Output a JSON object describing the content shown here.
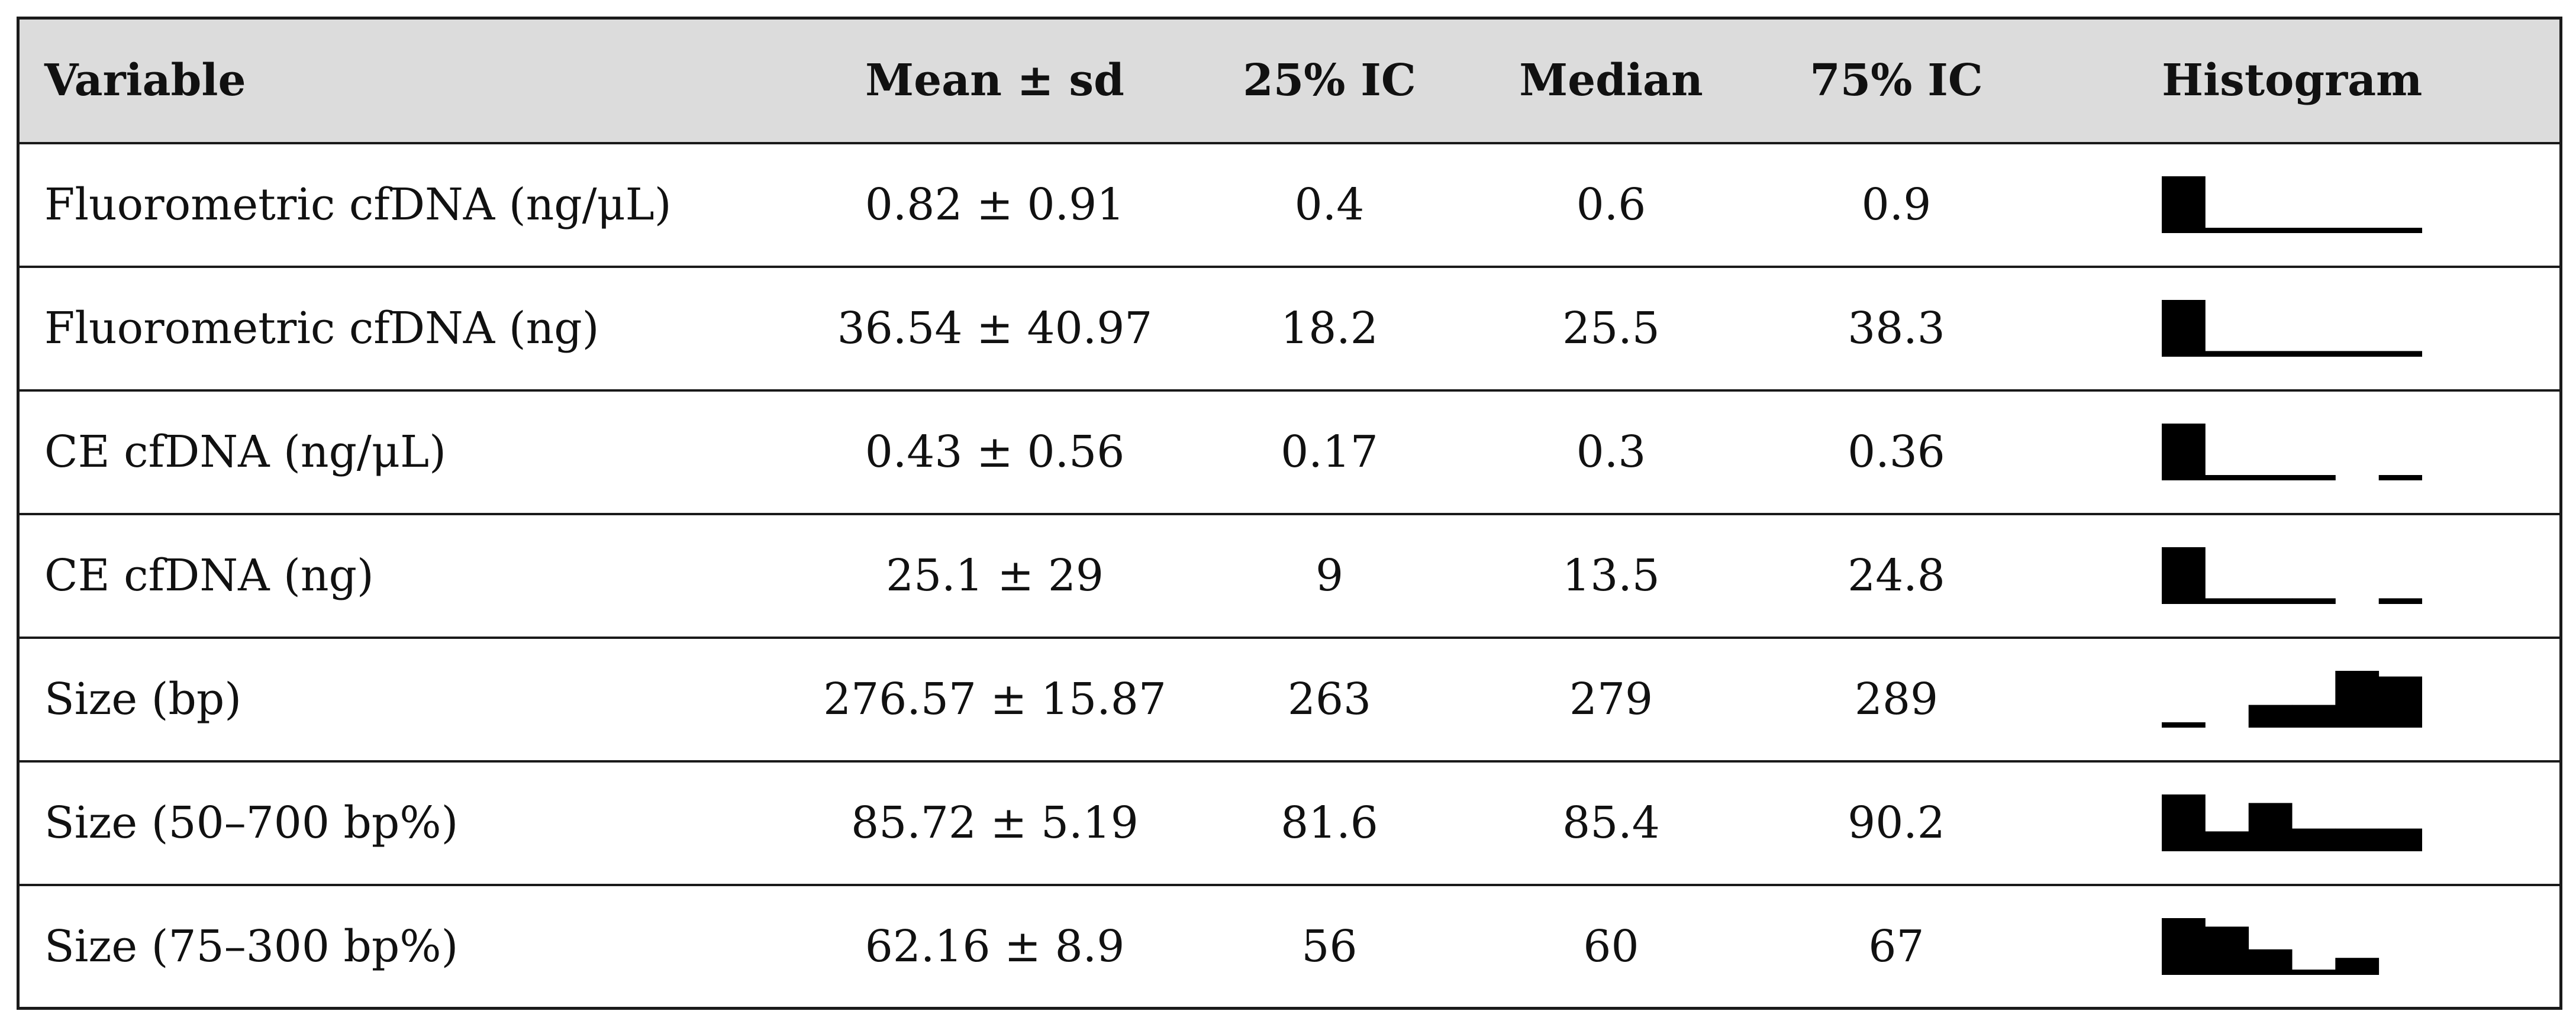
{
  "table": {
    "headers": [
      {
        "key": "variable",
        "label": "Variable"
      },
      {
        "key": "mean_sd",
        "label": "Mean ± sd"
      },
      {
        "key": "q25",
        "label": "25% IC"
      },
      {
        "key": "median",
        "label": "Median"
      },
      {
        "key": "q75",
        "label": "75% IC"
      },
      {
        "key": "histogram",
        "label": "Histogram"
      }
    ],
    "rows": [
      {
        "variable": "Fluorometric cfDNA (ng/μL)",
        "mean_sd": "0.82 ± 0.91",
        "q25": "0.4",
        "median": "0.6",
        "q75": "0.9",
        "histogram": [
          1,
          0.08,
          0.08,
          0.08,
          0.08,
          0.08
        ]
      },
      {
        "variable": "Fluorometric cfDNA (ng)",
        "mean_sd": "36.54 ± 40.97",
        "q25": "18.2",
        "median": "25.5",
        "q75": "38.3",
        "histogram": [
          1,
          0.1,
          0.1,
          0.1,
          0.1,
          0.1
        ]
      },
      {
        "variable": "CE cfDNA (ng/μL)",
        "mean_sd": "0.43 ± 0.56",
        "q25": "0.17",
        "median": "0.3",
        "q75": "0.36",
        "histogram": [
          1,
          0.08,
          0.08,
          0.08,
          0,
          0.08
        ]
      },
      {
        "variable": "CE cfDNA (ng)",
        "mean_sd": "25.1 ± 29",
        "q25": "9",
        "median": "13.5",
        "q75": "24.8",
        "histogram": [
          1,
          0.1,
          0.1,
          0.1,
          0,
          0.1
        ]
      },
      {
        "variable": "Size (bp)",
        "mean_sd": "276.57 ± 15.87",
        "q25": "263",
        "median": "279",
        "q75": "289",
        "histogram": [
          0.07,
          0,
          0.4,
          0.4,
          1,
          0.9
        ]
      },
      {
        "variable": "Size (50–700 bp%)",
        "mean_sd": "85.72 ± 5.19",
        "q25": "81.6",
        "median": "85.4",
        "q75": "90.2",
        "histogram": [
          1,
          0.35,
          0.85,
          0.4,
          0.4,
          0.4
        ]
      },
      {
        "variable": "Size (75–300 bp%)",
        "mean_sd": "62.16 ± 8.9",
        "q25": "56",
        "median": "60",
        "q75": "67",
        "histogram": [
          1,
          0.85,
          0.45,
          0.08,
          0.3,
          0
        ]
      }
    ]
  }
}
